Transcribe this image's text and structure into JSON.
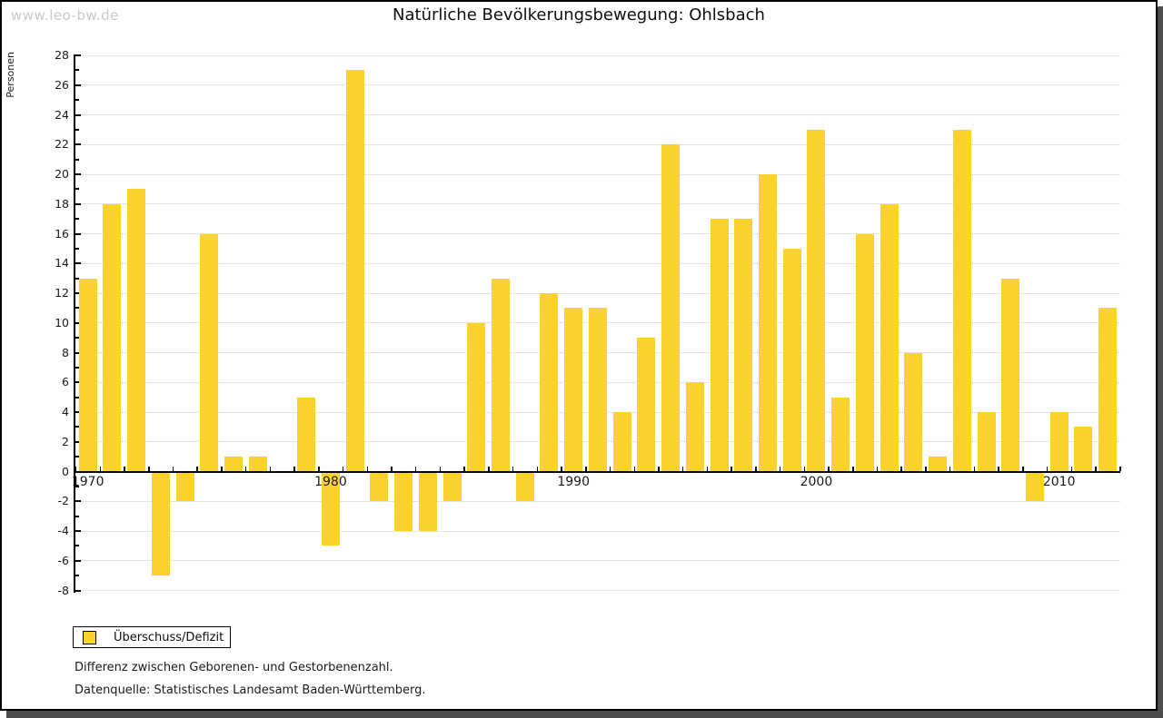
{
  "watermark": "www.leo-bw.de",
  "title": "Natürliche Bevölkerungsbewegung: Ohlsbach",
  "legend": {
    "label": "Überschuss/Defizit"
  },
  "footnotes": {
    "line1": "Differenz zwischen Geborenen- und Gestorbenenzahl.",
    "line2": "Datenquelle: Statistisches Landesamt Baden-Württemberg."
  },
  "colors": {
    "bar": "#fcd32d",
    "grid": "#e3e3e3",
    "axis": "#000000",
    "watermark": "#c9c9c9",
    "shadow": "#4d4d4d"
  },
  "chart_data": {
    "type": "bar",
    "title": "Natürliche Bevölkerungsbewegung: Ohlsbach",
    "xlabel": "",
    "ylabel": "Personen",
    "ylim": [
      -8,
      28
    ],
    "ytick_step": 2,
    "grid": true,
    "legend_position": "bottom-left",
    "series_name": "Überschuss/Defizit",
    "xticks_labeled": [
      1970,
      1980,
      1990,
      2000,
      2010
    ],
    "categories": [
      1970,
      1971,
      1972,
      1973,
      1974,
      1975,
      1976,
      1977,
      1978,
      1979,
      1980,
      1981,
      1982,
      1983,
      1984,
      1985,
      1986,
      1987,
      1988,
      1989,
      1990,
      1991,
      1992,
      1993,
      1994,
      1995,
      1996,
      1997,
      1998,
      1999,
      2000,
      2001,
      2002,
      2003,
      2004,
      2005,
      2006,
      2007,
      2008,
      2009,
      2010,
      2011,
      2012
    ],
    "values": [
      13,
      18,
      19,
      -7,
      -2,
      16,
      1,
      1,
      0,
      5,
      -5,
      27,
      -2,
      -4,
      -4,
      -2,
      10,
      13,
      -2,
      12,
      11,
      11,
      4,
      9,
      22,
      6,
      17,
      17,
      20,
      15,
      23,
      5,
      16,
      18,
      8,
      1,
      23,
      4,
      13,
      -2,
      4,
      3,
      11
    ]
  }
}
